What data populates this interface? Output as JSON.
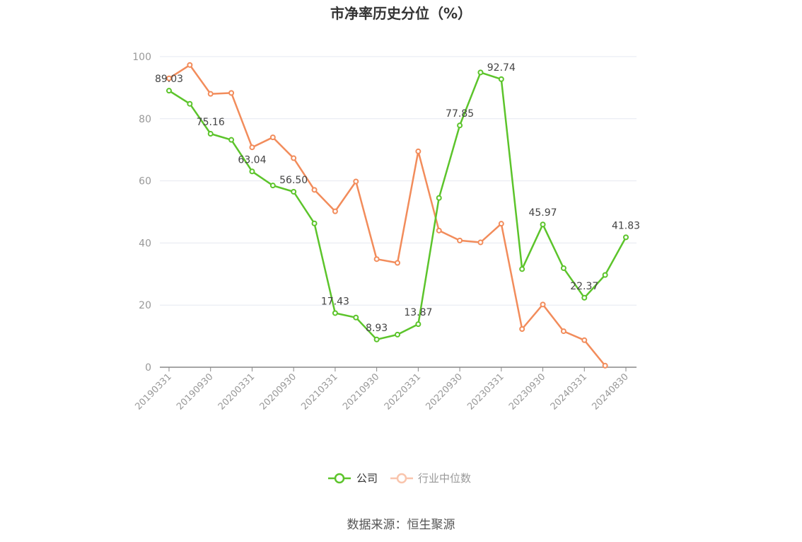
{
  "chart_data": {
    "type": "line",
    "title": "市净率历史分位（%）",
    "ylim": [
      0,
      100
    ],
    "yticks": [
      0,
      20,
      40,
      60,
      80,
      100
    ],
    "x": [
      "20190331",
      "20190630",
      "20190930",
      "20191231",
      "20200331",
      "20200630",
      "20200930",
      "20201231",
      "20210331",
      "20210630",
      "20210930",
      "20211231",
      "20220331",
      "20220630",
      "20220930",
      "20221231",
      "20230331",
      "20230630",
      "20230930",
      "20231231",
      "20240331",
      "20240630",
      "20240830"
    ],
    "xtick_labels": [
      "20190331",
      "20190930",
      "20200331",
      "20200930",
      "20210331",
      "20210930",
      "20220331",
      "20220930",
      "20230331",
      "20230930",
      "20240331",
      "20240830"
    ],
    "series": [
      {
        "name": "公司",
        "color": "#5cc42b",
        "values": [
          89.03,
          84.8,
          75.16,
          73.2,
          63.04,
          58.5,
          56.5,
          46.3,
          17.43,
          16.0,
          8.93,
          10.5,
          13.87,
          54.5,
          77.85,
          94.9,
          92.74,
          31.6,
          45.97,
          31.9,
          22.37,
          29.7,
          41.83
        ],
        "labels": {
          "0": "89.03",
          "2": "75.16",
          "4": "63.04",
          "6": "56.50",
          "8": "17.43",
          "10": "8.93",
          "12": "13.87",
          "14": "77.85",
          "16": "92.74",
          "18": "45.97",
          "20": "22.37",
          "22": "41.83"
        }
      },
      {
        "name": "行业中位数",
        "color": "#f28c5b",
        "values": [
          93.0,
          97.3,
          88.0,
          88.3,
          70.8,
          74.0,
          67.3,
          57.1,
          50.2,
          59.8,
          34.8,
          33.6,
          69.5,
          44.0,
          40.8,
          40.2,
          46.2,
          12.3,
          20.2,
          11.6,
          8.7,
          0.5,
          null
        ]
      }
    ],
    "legend": {
      "position": "bottom-center",
      "inactive_color": "#f9c5ad"
    },
    "grid": true
  },
  "source_text": "数据来源：恒生聚源"
}
